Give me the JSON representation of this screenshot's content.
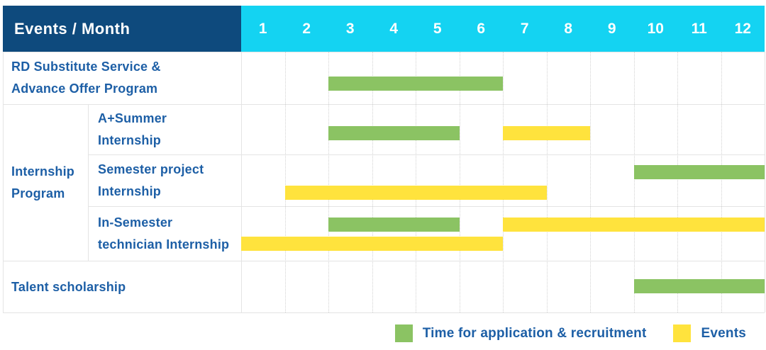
{
  "colors": {
    "header_bg": "#0e4a7d",
    "months_bg": "#14d3f2",
    "application_bar": "#8bc363",
    "event_bar": "#ffe33d",
    "label_text": "#1d5fa6",
    "header_text": "#ffffff",
    "grid_line": "#e4e4e4"
  },
  "table": {
    "corner_label": "Events / Month",
    "months": [
      "1",
      "2",
      "3",
      "4",
      "5",
      "6",
      "7",
      "8",
      "9",
      "10",
      "11",
      "12"
    ],
    "group_label_lines": [
      "Internship",
      "Program"
    ],
    "rows": [
      {
        "name": "rd-substitute-service",
        "label_lines": [
          "RD Substitute Service &",
          "Advance Offer Program"
        ],
        "in_group": false
      },
      {
        "name": "a-plus-summer-internship",
        "label_lines": [
          "A+Summer",
          "Internship"
        ],
        "in_group": true
      },
      {
        "name": "semester-project-internship",
        "label_lines": [
          "Semester project",
          "Internship"
        ],
        "in_group": true
      },
      {
        "name": "in-semester-technician-internship",
        "label_lines": [
          "In-Semester",
          "technician Internship"
        ],
        "in_group": true
      },
      {
        "name": "talent-scholarship",
        "label_lines": [
          "Talent scholarship"
        ],
        "in_group": false
      }
    ]
  },
  "chart_data": {
    "type": "bar",
    "subtype": "gantt",
    "title": "Events / Month",
    "x_unit": "month",
    "x_range": [
      1,
      12
    ],
    "grid": true,
    "legend_position": "bottom-right",
    "categories": [
      "RD Substitute Service & Advance Offer Program",
      "A+Summer Internship",
      "Semester project Internship",
      "In-Semester technician Internship",
      "Talent scholarship"
    ],
    "series": [
      {
        "name": "Time for application & recruitment",
        "color": "#8bc363",
        "spans": [
          {
            "row": 0,
            "start_month": 3,
            "end_month": 6,
            "lane": 0
          },
          {
            "row": 1,
            "start_month": 3,
            "end_month": 5,
            "lane": 0
          },
          {
            "row": 2,
            "start_month": 10,
            "end_month": 12,
            "lane": 0
          },
          {
            "row": 3,
            "start_month": 3,
            "end_month": 5,
            "lane": 0
          },
          {
            "row": 4,
            "start_month": 10,
            "end_month": 12,
            "lane": 0
          }
        ]
      },
      {
        "name": "Events",
        "color": "#ffe33d",
        "spans": [
          {
            "row": 1,
            "start_month": 7,
            "end_month": 8,
            "lane": 0
          },
          {
            "row": 2,
            "start_month": 2,
            "end_month": 7,
            "lane": 1
          },
          {
            "row": 3,
            "start_month": 7,
            "end_month": 12,
            "lane": 0
          },
          {
            "row": 3,
            "start_month": 1,
            "end_month": 6,
            "lane": 1
          }
        ]
      }
    ]
  },
  "legend": {
    "items": [
      {
        "label": "Time for application & recruitment",
        "kind": "application"
      },
      {
        "label": "Events",
        "kind": "event"
      }
    ]
  }
}
